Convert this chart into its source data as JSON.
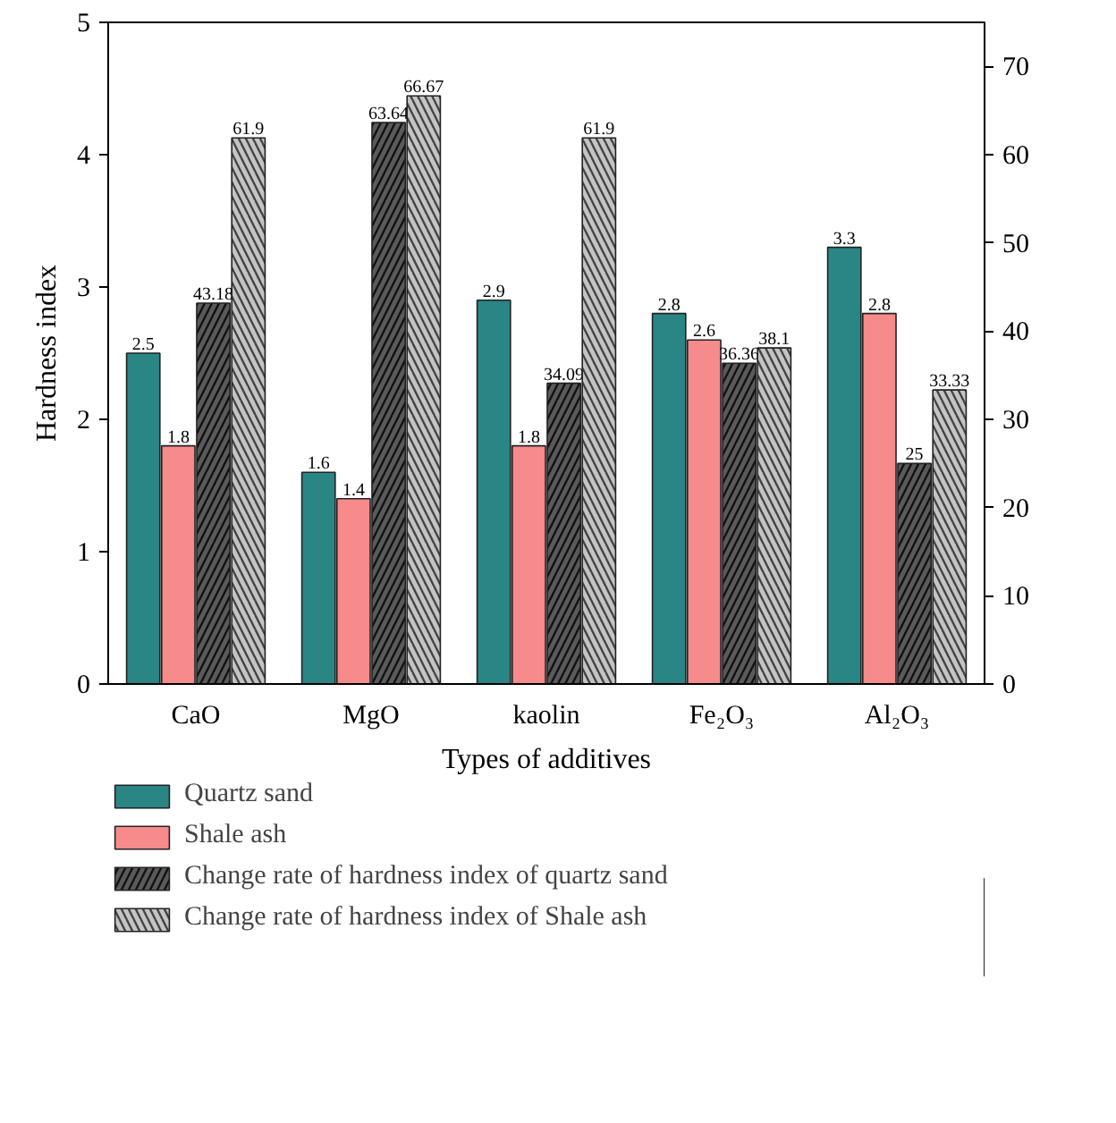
{
  "chart_data": {
    "type": "bar",
    "xlabel": "Types of additives",
    "ylabel": "Hardness index",
    "categories": [
      "CaO",
      "MgO",
      "kaolin",
      "Fe₂O₃",
      "Al₂O₃"
    ],
    "series": [
      {
        "name": "Quartz sand",
        "color": "#2a8585",
        "values": [
          2.5,
          1.6,
          2.9,
          2.8,
          3.3
        ]
      },
      {
        "name": "Shale ash",
        "color": "#f78a8a",
        "values": [
          1.8,
          1.4,
          1.8,
          2.6,
          2.8
        ]
      },
      {
        "name": "Change rate of hardness index of quartz sand",
        "color": "#5a5a5a",
        "axis": "y2",
        "values": [
          43.18,
          63.64,
          34.09,
          36.36,
          25
        ]
      },
      {
        "name": "Change rate of hardness index of Shale ash",
        "color": "#c4c4c4",
        "axis": "y2",
        "values": [
          61.9,
          66.67,
          61.9,
          38.1,
          33.33
        ]
      }
    ],
    "ylim": [
      0,
      5
    ],
    "yticks": [
      0,
      1,
      2,
      3,
      4,
      5
    ],
    "y2lim": [
      0,
      75
    ],
    "y2ticks": [
      0,
      10,
      20,
      30,
      40,
      50,
      60,
      70
    ],
    "data_labels": true,
    "legend": "bottom",
    "grid": false
  }
}
